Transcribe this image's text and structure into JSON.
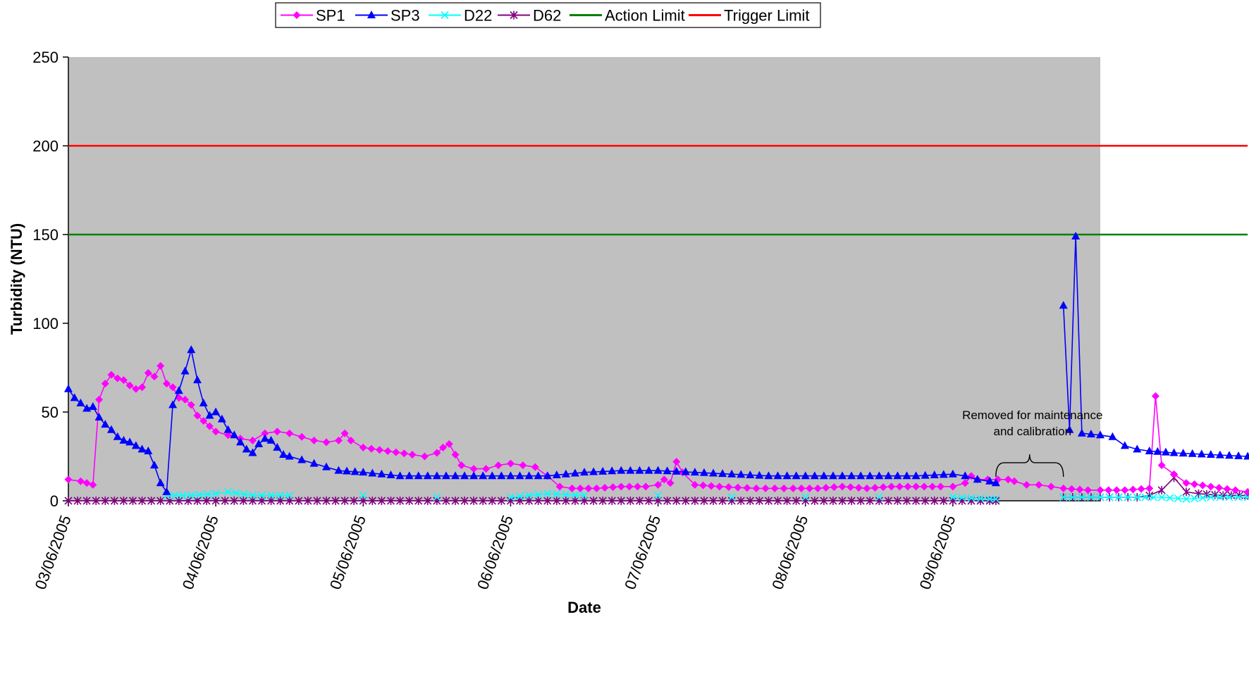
{
  "chart_data": {
    "type": "line",
    "title": "",
    "xlabel": "Date",
    "ylabel": "Turbidity (NTU)",
    "ylim": [
      0,
      250
    ],
    "yticks": [
      0,
      50,
      100,
      150,
      200,
      250
    ],
    "xlim": [
      "2005-06-03",
      "2005-06-10"
    ],
    "xticks": [
      "03/06/2005",
      "04/06/2005",
      "05/06/2005",
      "06/06/2005",
      "07/06/2005",
      "08/06/2005",
      "09/06/2005"
    ],
    "x_format": "day/hour",
    "plot_background": "#C0C0C0",
    "grid": false,
    "legend": "top",
    "series": [
      {
        "name": "SP1",
        "color": "#FF00FF",
        "marker": "diamond",
        "points": [
          [
            "03/00",
            12
          ],
          [
            "03/02",
            11
          ],
          [
            "03/03",
            10
          ],
          [
            "03/04",
            9
          ],
          [
            "03/05",
            57
          ],
          [
            "03/06",
            66
          ],
          [
            "03/07",
            71
          ],
          [
            "03/08",
            69
          ],
          [
            "03/09",
            68
          ],
          [
            "03/10",
            65
          ],
          [
            "03/11",
            63
          ],
          [
            "03/12",
            64
          ],
          [
            "03/13",
            72
          ],
          [
            "03/14",
            70
          ],
          [
            "03/15",
            76
          ],
          [
            "03/16",
            66
          ],
          [
            "03/17",
            64
          ],
          [
            "03/18",
            58
          ],
          [
            "03/19",
            57
          ],
          [
            "03/20",
            54
          ],
          [
            "03/21",
            48
          ],
          [
            "03/22",
            45
          ],
          [
            "03/23",
            42
          ],
          [
            "04/00",
            39
          ],
          [
            "04/02",
            37
          ],
          [
            "04/04",
            35
          ],
          [
            "04/06",
            34
          ],
          [
            "04/08",
            38
          ],
          [
            "04/10",
            39
          ],
          [
            "04/12",
            38
          ],
          [
            "04/14",
            36
          ],
          [
            "04/16",
            34
          ],
          [
            "04/18",
            33
          ],
          [
            "04/20",
            34
          ],
          [
            "04/21",
            38
          ],
          [
            "04/22",
            34
          ],
          [
            "05/00",
            30
          ],
          [
            "05/04",
            28
          ],
          [
            "05/08",
            26
          ],
          [
            "05/10",
            25
          ],
          [
            "05/12",
            27
          ],
          [
            "05/13",
            30
          ],
          [
            "05/14",
            32
          ],
          [
            "05/15",
            26
          ],
          [
            "05/16",
            20
          ],
          [
            "05/18",
            18
          ],
          [
            "05/20",
            18
          ],
          [
            "05/22",
            20
          ],
          [
            "06/00",
            21
          ],
          [
            "06/02",
            20
          ],
          [
            "06/04",
            19
          ],
          [
            "06/06",
            14
          ],
          [
            "06/08",
            8
          ],
          [
            "06/10",
            7
          ],
          [
            "06/14",
            7
          ],
          [
            "06/18",
            8
          ],
          [
            "06/22",
            8
          ],
          [
            "07/00",
            9
          ],
          [
            "07/01",
            12
          ],
          [
            "07/02",
            10
          ],
          [
            "07/03",
            22
          ],
          [
            "07/04",
            16
          ],
          [
            "07/06",
            9
          ],
          [
            "07/10",
            8
          ],
          [
            "07/16",
            7
          ],
          [
            "07/22",
            7
          ],
          [
            "08/02",
            7
          ],
          [
            "08/06",
            8
          ],
          [
            "08/10",
            7
          ],
          [
            "08/14",
            8
          ],
          [
            "08/18",
            8
          ],
          [
            "08/22",
            8
          ],
          [
            "09/00",
            8
          ],
          [
            "09/02",
            10
          ],
          [
            "09/03",
            14
          ],
          [
            "09/04",
            12
          ],
          [
            "09/09",
            12
          ],
          [
            "09/10",
            11
          ],
          [
            "09/12",
            9
          ],
          [
            "09/14",
            9
          ],
          [
            "09/16",
            8
          ],
          [
            "09/18",
            7
          ],
          [
            "09/22",
            6
          ],
          [
            "10/00",
            6
          ],
          [
            "10/04",
            6
          ],
          [
            "10/08",
            7
          ],
          [
            "10/09",
            59
          ],
          [
            "10/10",
            20
          ],
          [
            "10/12",
            15
          ],
          [
            "10/14",
            10
          ],
          [
            "10/18",
            8
          ],
          [
            "10/22",
            6
          ],
          [
            "10/24",
            5
          ]
        ]
      },
      {
        "name": "SP3",
        "color": "#0000FF",
        "marker": "triangle",
        "points": [
          [
            "03/00",
            63
          ],
          [
            "03/01",
            58
          ],
          [
            "03/02",
            55
          ],
          [
            "03/03",
            52
          ],
          [
            "03/04",
            53
          ],
          [
            "03/05",
            47
          ],
          [
            "03/06",
            43
          ],
          [
            "03/07",
            40
          ],
          [
            "03/08",
            36
          ],
          [
            "03/09",
            34
          ],
          [
            "03/10",
            33
          ],
          [
            "03/11",
            31
          ],
          [
            "03/12",
            29
          ],
          [
            "03/13",
            28
          ],
          [
            "03/14",
            20
          ],
          [
            "03/15",
            10
          ],
          [
            "03/16",
            5
          ],
          [
            "03/17",
            54
          ],
          [
            "03/18",
            62
          ],
          [
            "03/19",
            73
          ],
          [
            "03/20",
            85
          ],
          [
            "03/21",
            68
          ],
          [
            "03/22",
            55
          ],
          [
            "03/23",
            48
          ],
          [
            "04/00",
            50
          ],
          [
            "04/01",
            46
          ],
          [
            "04/02",
            40
          ],
          [
            "04/03",
            37
          ],
          [
            "04/04",
            33
          ],
          [
            "04/05",
            29
          ],
          [
            "04/06",
            27
          ],
          [
            "04/07",
            32
          ],
          [
            "04/08",
            35
          ],
          [
            "04/09",
            34
          ],
          [
            "04/10",
            30
          ],
          [
            "04/11",
            26
          ],
          [
            "04/12",
            25
          ],
          [
            "04/14",
            23
          ],
          [
            "04/16",
            21
          ],
          [
            "04/18",
            19
          ],
          [
            "04/20",
            17
          ],
          [
            "05/00",
            16
          ],
          [
            "05/06",
            14
          ],
          [
            "05/12",
            14
          ],
          [
            "05/18",
            14
          ],
          [
            "06/00",
            14
          ],
          [
            "06/06",
            14
          ],
          [
            "06/12",
            16
          ],
          [
            "06/18",
            17
          ],
          [
            "07/00",
            17
          ],
          [
            "07/06",
            16
          ],
          [
            "07/12",
            15
          ],
          [
            "07/18",
            14
          ],
          [
            "08/00",
            14
          ],
          [
            "08/06",
            14
          ],
          [
            "08/12",
            14
          ],
          [
            "08/18",
            14
          ],
          [
            "09/00",
            15
          ],
          [
            "09/02",
            14
          ],
          [
            "09/04",
            12
          ],
          [
            "09/06",
            11
          ],
          [
            "09/07",
            10
          ],
          [
            "09/18",
            110
          ],
          [
            "09/19",
            40
          ],
          [
            "09/20",
            149
          ],
          [
            "09/21",
            38
          ],
          [
            "10/00",
            37
          ],
          [
            "10/02",
            36
          ],
          [
            "10/04",
            31
          ],
          [
            "10/06",
            29
          ],
          [
            "10/08",
            28
          ],
          [
            "10/12",
            27
          ],
          [
            "10/18",
            26
          ],
          [
            "10/24",
            25
          ]
        ]
      },
      {
        "name": "D22",
        "color": "#00FFFF",
        "marker": "x",
        "points": [
          [
            "03/16",
            3
          ],
          [
            "03/20",
            3
          ],
          [
            "04/00",
            4
          ],
          [
            "04/02",
            5
          ],
          [
            "04/06",
            3
          ],
          [
            "04/12",
            3
          ],
          [
            "05/00",
            3
          ],
          [
            "05/12",
            2
          ],
          [
            "06/00",
            2
          ],
          [
            "06/06",
            4
          ],
          [
            "06/12",
            3
          ],
          [
            "07/00",
            3
          ],
          [
            "07/12",
            2
          ],
          [
            "08/00",
            2
          ],
          [
            "08/12",
            2
          ],
          [
            "09/00",
            2
          ],
          [
            "09/06",
            1
          ],
          [
            "09/07",
            1
          ],
          [
            "09/18",
            2
          ],
          [
            "10/00",
            2
          ],
          [
            "10/06",
            2
          ],
          [
            "10/10",
            2
          ],
          [
            "10/14",
            1
          ],
          [
            "10/18",
            2
          ],
          [
            "10/24",
            2
          ]
        ]
      },
      {
        "name": "D62",
        "color": "#800080",
        "marker": "star",
        "points": [
          [
            "03/00",
            0
          ],
          [
            "03/12",
            0
          ],
          [
            "04/00",
            0
          ],
          [
            "04/12",
            0
          ],
          [
            "05/00",
            0
          ],
          [
            "05/12",
            0
          ],
          [
            "06/00",
            0
          ],
          [
            "06/12",
            0
          ],
          [
            "07/00",
            0
          ],
          [
            "07/12",
            0
          ],
          [
            "08/00",
            0
          ],
          [
            "08/12",
            0
          ],
          [
            "09/00",
            0
          ],
          [
            "09/06",
            0
          ],
          [
            "09/07",
            0
          ],
          [
            "09/18",
            2
          ],
          [
            "10/00",
            2
          ],
          [
            "10/06",
            2
          ],
          [
            "10/08",
            3
          ],
          [
            "10/10",
            6
          ],
          [
            "10/12",
            13
          ],
          [
            "10/14",
            5
          ],
          [
            "10/16",
            4
          ],
          [
            "10/20",
            3
          ],
          [
            "10/24",
            3
          ]
        ]
      },
      {
        "name": "Action Limit",
        "color": "#008000",
        "marker": "none",
        "points": [
          [
            "03/00",
            150
          ],
          [
            "10/24",
            150
          ]
        ]
      },
      {
        "name": "Trigger Limit",
        "color": "#FF0000",
        "marker": "none",
        "points": [
          [
            "03/00",
            200
          ],
          [
            "10/24",
            200
          ]
        ]
      }
    ],
    "annotations": [
      {
        "text_lines": [
          "Removed for maintenance",
          "and calibration"
        ],
        "bracket_from": "09/07",
        "bracket_to": "09/18",
        "y": 27
      }
    ]
  }
}
